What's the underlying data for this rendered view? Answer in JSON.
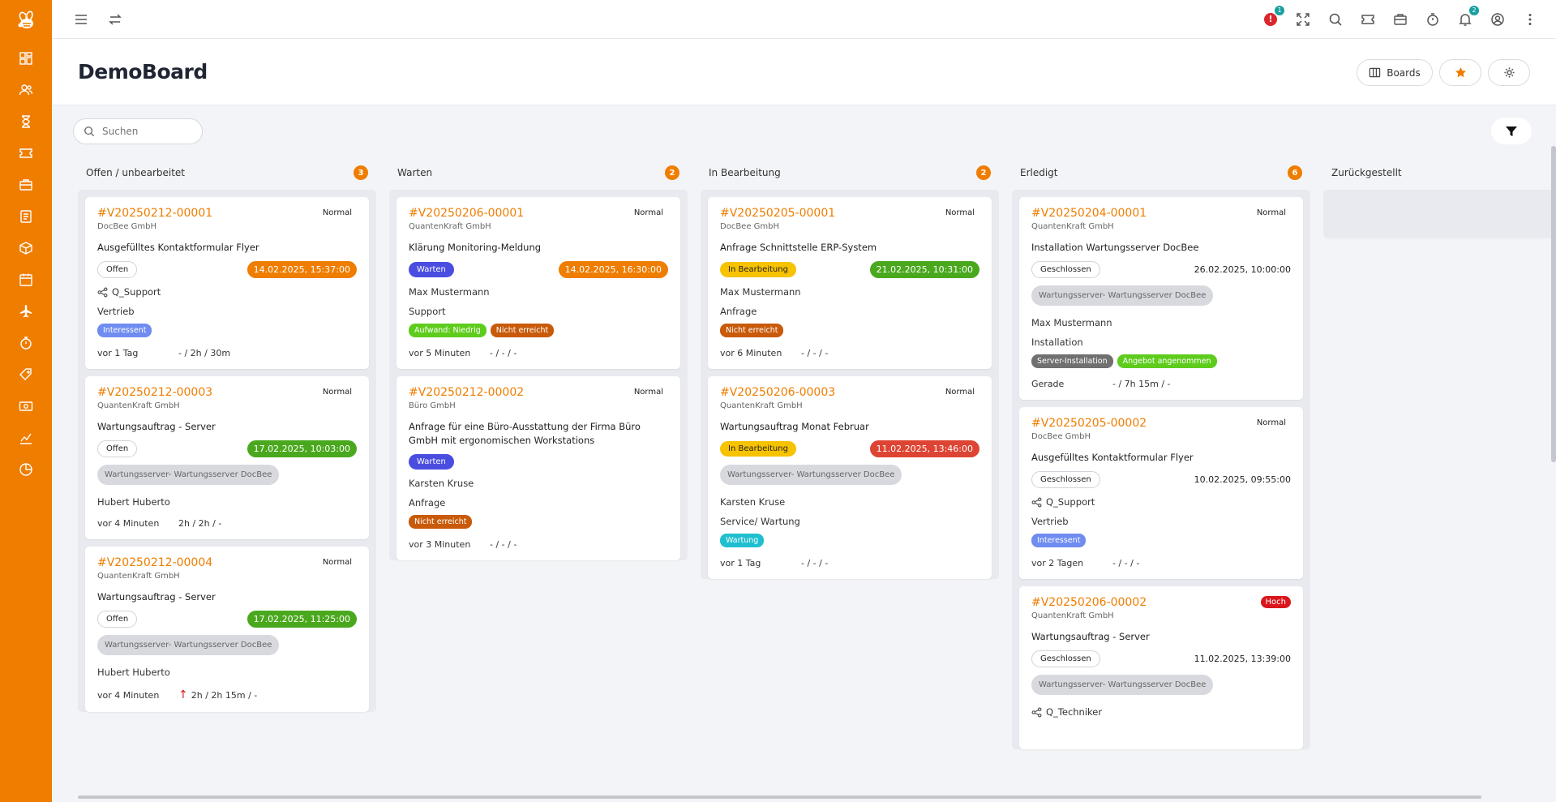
{
  "colors": {
    "accent": "#ef7d00",
    "sidebar": "#ef7d00"
  },
  "topbar": {
    "alert_count": "1",
    "notification_count": "2"
  },
  "header": {
    "title": "DemoBoard",
    "boards_label": "Boards"
  },
  "search": {
    "placeholder": "Suchen"
  },
  "columns": [
    {
      "title": "Offen / unbearbeitet",
      "count": "3"
    },
    {
      "title": "Warten",
      "count": "2"
    },
    {
      "title": "In Bearbeitung",
      "count": "2"
    },
    {
      "title": "Erledigt",
      "count": "6"
    },
    {
      "title": "Zurückgestellt"
    }
  ],
  "cards": {
    "c1": {
      "id": "#V20250212-00001",
      "prio": "Normal",
      "company": "DocBee GmbH",
      "subject": "Ausgefülltes Kontaktformular Flyer",
      "status": "Offen",
      "date": "14.02.2025, 15:37:00",
      "queue": "Q_Support",
      "category": "Vertrieb",
      "tag1": "Interessent",
      "age": "vor 1 Tag",
      "time": "- / 2h / 30m"
    },
    "c2": {
      "id": "#V20250212-00003",
      "prio": "Normal",
      "company": "QuantenKraft GmbH",
      "subject": "Wartungsauftrag - Server",
      "status": "Offen",
      "date": "17.02.2025, 10:03:00",
      "asset": "Wartungsserver- Wartungsserver DocBee",
      "person": "Hubert Huberto",
      "age": "vor 4 Minuten",
      "time": "2h / 2h / -"
    },
    "c3": {
      "id": "#V20250212-00004",
      "prio": "Normal",
      "company": "QuantenKraft GmbH",
      "subject": "Wartungsauftrag - Server",
      "status": "Offen",
      "date": "17.02.2025, 11:25:00",
      "asset": "Wartungsserver- Wartungsserver DocBee",
      "person": "Hubert Huberto",
      "age": "vor 4 Minuten",
      "arrow": "↑",
      "time": "2h / 2h 15m / -"
    },
    "c4": {
      "id": "#V20250206-00001",
      "prio": "Normal",
      "company": "QuantenKraft GmbH",
      "subject": "Klärung Monitoring-Meldung",
      "status": "Warten",
      "date": "14.02.2025, 16:30:00",
      "person": "Max Mustermann",
      "category": "Support",
      "tag1": "Aufwand: Niedrig",
      "tag2": "Nicht erreicht",
      "age": "vor 5 Minuten",
      "time": "- / - / -"
    },
    "c5": {
      "id": "#V20250212-00002",
      "prio": "Normal",
      "company": "Büro GmbH",
      "subject": "Anfrage für eine Büro-Ausstattung der Firma Büro GmbH mit ergonomischen Workstations",
      "status": "Warten",
      "person": "Karsten Kruse",
      "category": "Anfrage",
      "tag1": "Nicht erreicht",
      "age": "vor 3 Minuten",
      "time": "- / - / -"
    },
    "c6": {
      "id": "#V20250205-00001",
      "prio": "Normal",
      "company": "DocBee GmbH",
      "subject": "Anfrage Schnittstelle ERP-System",
      "status": "In Bearbeitung",
      "date": "21.02.2025, 10:31:00",
      "person": "Max Mustermann",
      "category": "Anfrage",
      "tag1": "Nicht erreicht",
      "age": "vor 6 Minuten",
      "time": "- / - / -"
    },
    "c7": {
      "id": "#V20250206-00003",
      "prio": "Normal",
      "company": "QuantenKraft GmbH",
      "subject": "Wartungsauftrag Monat Februar",
      "status": "In Bearbeitung",
      "date": "11.02.2025, 13:46:00",
      "asset": "Wartungsserver- Wartungsserver DocBee",
      "person": "Karsten Kruse",
      "category": "Service/ Wartung",
      "tag1": "Wartung",
      "age": "vor 1 Tag",
      "time": "- / - / -"
    },
    "c8": {
      "id": "#V20250204-00001",
      "prio": "Normal",
      "company": "QuantenKraft GmbH",
      "subject": "Installation Wartungsserver DocBee",
      "status": "Geschlossen",
      "date": "26.02.2025, 10:00:00",
      "asset": "Wartungsserver- Wartungsserver DocBee",
      "person": "Max Mustermann",
      "category": "Installation",
      "tag1": "Server-Installation",
      "tag2": "Angebot angenommen",
      "age": "Gerade",
      "time": "- / 7h 15m / -"
    },
    "c9": {
      "id": "#V20250205-00002",
      "prio": "Normal",
      "company": "DocBee GmbH",
      "subject": "Ausgefülltes Kontaktformular Flyer",
      "status": "Geschlossen",
      "date": "10.02.2025, 09:55:00",
      "queue": "Q_Support",
      "category": "Vertrieb",
      "tag1": "Interessent",
      "age": "vor 2 Tagen",
      "time": "- / - / -"
    },
    "c10": {
      "id": "#V20250206-00002",
      "prio": "Hoch",
      "company": "QuantenKraft GmbH",
      "subject": "Wartungsauftrag - Server",
      "status": "Geschlossen",
      "date": "11.02.2025, 13:39:00",
      "asset": "Wartungsserver- Wartungsserver DocBee",
      "queue": "Q_Techniker"
    }
  }
}
